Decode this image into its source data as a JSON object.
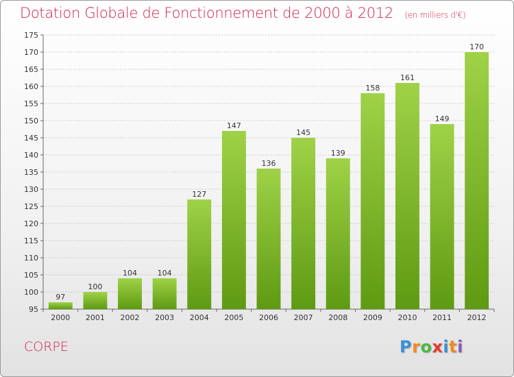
{
  "title": "Dotation Globale de Fonctionnement de 2000 à 2012",
  "unit": "(en milliers d'€)",
  "commune": "CORPE",
  "logo": {
    "letters": [
      "P",
      "r",
      "o",
      "x",
      "i",
      "t",
      "i"
    ],
    "colors": [
      "#3a8fd8",
      "#f08a1c",
      "#4cb848",
      "#e23c2b",
      "#3a8fd8",
      "#f08a1c",
      "#8b5ab5"
    ]
  },
  "colors": {
    "bar_top": "#9fd247",
    "bar_bottom": "#5e9a12",
    "grid": "#cccccc",
    "title": "#d21f45"
  },
  "chart_data": {
    "type": "bar",
    "categories": [
      "2000",
      "2001",
      "2002",
      "2003",
      "2004",
      "2005",
      "2006",
      "2007",
      "2008",
      "2009",
      "2010",
      "2011",
      "2012"
    ],
    "values": [
      97,
      100,
      104,
      104,
      127,
      147,
      136,
      145,
      139,
      158,
      161,
      149,
      170
    ],
    "data_labels": [
      "97",
      "100",
      "104",
      "104",
      "127",
      "147",
      "136",
      "145",
      "139",
      "158",
      "161",
      "149",
      "170"
    ],
    "ylim": [
      95,
      175
    ],
    "yticks": [
      "95",
      "100",
      "105",
      "110",
      "115",
      "120",
      "125",
      "130",
      "135",
      "140",
      "145",
      "150",
      "155",
      "160",
      "165",
      "170",
      "175"
    ],
    "grid": true,
    "xlabel": "",
    "ylabel": ""
  }
}
